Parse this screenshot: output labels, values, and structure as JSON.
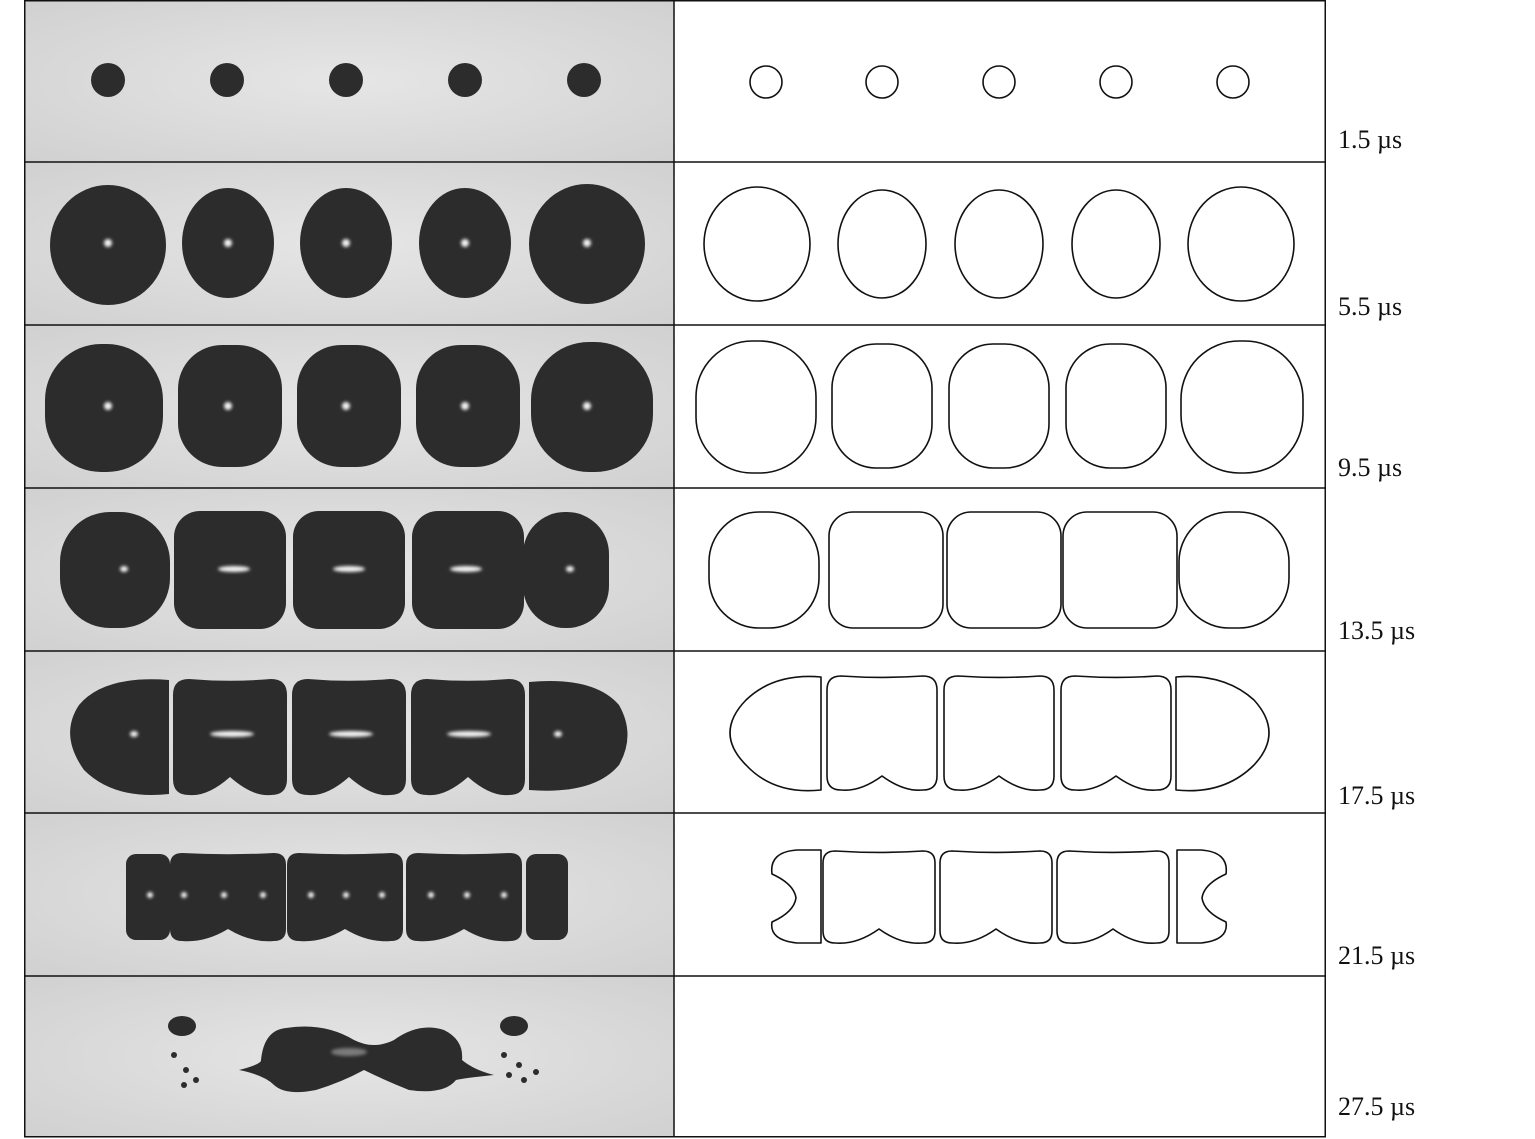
{
  "time_labels": [
    "1.5 µs",
    "5.5 µs",
    "9.5 µs",
    "13.5 µs",
    "17.5 µs",
    "21.5 µs",
    "27.5 µs"
  ],
  "panels": {
    "left": "experimental-photographs",
    "right": "simulated-contours"
  },
  "colors": {
    "photo_background": "#d9d9d9",
    "bubble_dark": "#2c2c2c",
    "highlight": "#f2f2f2",
    "contour_stroke": "#111111",
    "grid_line": "#111111"
  }
}
